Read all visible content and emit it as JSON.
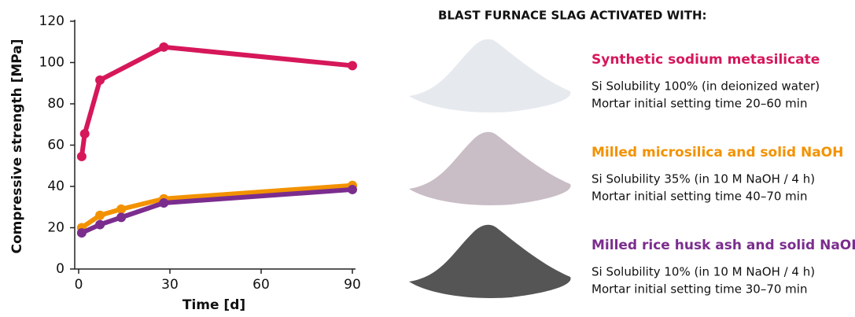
{
  "chart_data": {
    "type": "line",
    "x_label": "Time [d]",
    "y_label": "Compressive strength [MPa]",
    "xlim": [
      0,
      90
    ],
    "xticks": [
      0,
      30,
      60,
      90
    ],
    "ylim": [
      0,
      120
    ],
    "yticks": [
      0,
      20,
      40,
      60,
      80,
      100,
      120
    ],
    "grid": false,
    "panel_title": "BLAST FURNACE SLAG ACTIVATED WITH:",
    "series": [
      {
        "name": "Synthetic sodium metasilicate",
        "color": "#d6175a",
        "x": [
          1,
          2,
          7,
          28,
          90
        ],
        "values": [
          54.5,
          65.5,
          91.5,
          107.5,
          98.5
        ],
        "details": [
          "Si Solubility 100% (in deionized water)",
          "Mortar initial setting time 20–60 min"
        ],
        "powder": "#e6eaee"
      },
      {
        "name": "Milled microsilica and solid NaOH",
        "color": "#f39200",
        "x": [
          1,
          7,
          14,
          28,
          90
        ],
        "values": [
          20,
          26,
          29,
          34,
          40.5
        ],
        "details": [
          "Si Solubility 35% (in 10 M NaOH / 4 h)",
          "Mortar initial setting time 40–70 min"
        ],
        "powder": "#c9bdc6"
      },
      {
        "name": "Milled rice husk ash and solid NaOH",
        "color": "#7b2d8e",
        "x": [
          1,
          7,
          14,
          28,
          90
        ],
        "values": [
          17.5,
          21.5,
          25,
          32,
          38.5
        ],
        "details": [
          "Si Solubility 10% (in 10 M NaOH / 4 h)",
          "Mortar initial setting time 30–70 min"
        ],
        "powder": "#555555"
      }
    ]
  }
}
